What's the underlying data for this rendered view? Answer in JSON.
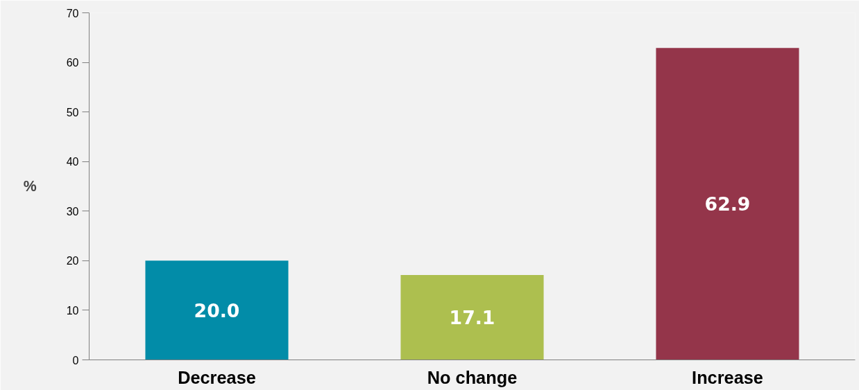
{
  "chart_data": {
    "type": "bar",
    "ylabel": "%",
    "categories": [
      "Decrease",
      "No change",
      "Increase"
    ],
    "values": [
      20.0,
      17.1,
      62.9
    ],
    "colors": [
      "#028ca8",
      "#adbf4f",
      "#94354a"
    ],
    "ylim": [
      0,
      70
    ],
    "yticks": [
      0,
      10,
      20,
      30,
      40,
      50,
      60,
      70
    ],
    "value_labels": [
      "20.0",
      "17.1",
      "62.9"
    ],
    "grid": false
  }
}
